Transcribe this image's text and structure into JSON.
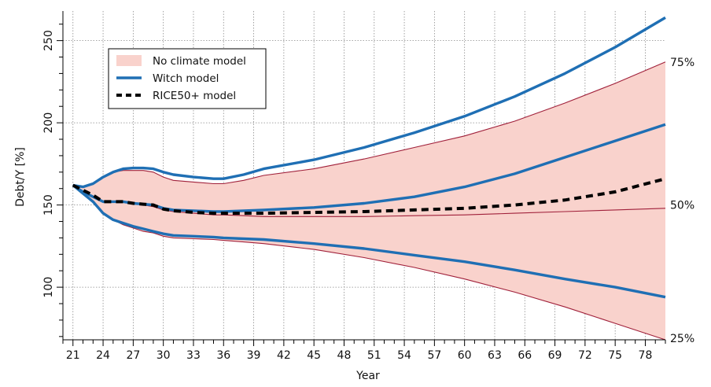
{
  "chart_data": {
    "type": "line",
    "title": "",
    "xlabel": "Year",
    "ylabel": "Debt/Y [%]",
    "xlim": [
      20,
      80
    ],
    "ylim": [
      68,
      268
    ],
    "x_ticks": [
      21,
      24,
      27,
      30,
      33,
      36,
      39,
      42,
      45,
      48,
      51,
      54,
      57,
      60,
      63,
      66,
      69,
      72,
      75,
      78
    ],
    "y_ticks": [
      100,
      150,
      200,
      250
    ],
    "grid": true,
    "legend_position": "top-left",
    "legend": [
      {
        "label": "No climate model",
        "kind": "band",
        "color": "#f9d2cc"
      },
      {
        "label": "Witch model",
        "kind": "line",
        "color": "#1f6fb4"
      },
      {
        "label": "RICE50+ model",
        "kind": "dashed",
        "color": "#000000"
      }
    ],
    "percentile_labels": [
      {
        "text": "75%",
        "y": 237
      },
      {
        "text": "50%",
        "y": 150
      },
      {
        "text": "25%",
        "y": 69
      }
    ],
    "x": [
      21,
      22,
      23,
      24,
      25,
      26,
      27,
      28,
      29,
      30,
      31,
      33,
      35,
      36,
      38,
      40,
      45,
      50,
      55,
      60,
      65,
      70,
      75,
      80
    ],
    "series": [
      {
        "name": "No climate model",
        "role": "band-upper",
        "color": "#a0203a",
        "values": [
          162,
          161,
          163,
          167,
          170,
          171,
          171,
          171,
          170,
          167,
          165,
          164,
          163,
          163,
          165,
          168,
          172,
          178,
          185,
          192,
          201,
          212,
          224,
          237
        ]
      },
      {
        "name": "No climate model",
        "role": "band-median",
        "color": "#a0203a",
        "values": [
          162,
          158,
          155,
          152,
          152,
          152,
          151,
          150,
          149,
          147,
          146,
          145,
          144,
          144,
          143.5,
          143,
          143,
          143,
          143.5,
          144,
          145,
          146,
          147,
          148
        ]
      },
      {
        "name": "No climate model",
        "role": "band-lower",
        "color": "#a0203a",
        "values": [
          162,
          157,
          152,
          145,
          141,
          138,
          136,
          134,
          133,
          131,
          130,
          129.5,
          129,
          128.5,
          127.5,
          126.5,
          123,
          118,
          112,
          105,
          97,
          88,
          78,
          68
        ]
      },
      {
        "name": "Witch model",
        "role": "upper",
        "color": "#1f6fb4",
        "values": [
          162,
          161,
          163,
          167,
          170,
          172,
          172.5,
          172.5,
          172,
          170,
          168.5,
          167,
          166,
          166,
          168.5,
          172,
          177.5,
          185,
          194,
          204,
          216,
          230,
          246,
          264
        ]
      },
      {
        "name": "Witch model",
        "role": "median",
        "color": "#1f6fb4",
        "values": [
          162,
          158,
          155,
          152,
          152,
          152,
          151,
          150.5,
          150,
          148,
          147,
          146.5,
          146,
          146,
          146.5,
          147,
          148.5,
          151,
          155,
          161,
          169,
          179,
          189,
          199
        ]
      },
      {
        "name": "Witch model",
        "role": "lower",
        "color": "#1f6fb4",
        "values": [
          162,
          157,
          152,
          145,
          141,
          139,
          137,
          135.5,
          134,
          132.5,
          131.5,
          131,
          130.5,
          130,
          129.5,
          129,
          126.5,
          123.5,
          119.5,
          115.5,
          110.5,
          105,
          100,
          94
        ]
      },
      {
        "name": "RICE50+ model",
        "role": "median",
        "color": "#000000",
        "values": [
          162,
          159,
          156,
          152,
          152,
          152,
          151,
          150.5,
          150,
          147.5,
          146.5,
          145.5,
          145,
          145,
          145,
          145,
          145.5,
          146,
          147,
          148,
          150,
          153,
          158,
          166
        ]
      }
    ]
  }
}
